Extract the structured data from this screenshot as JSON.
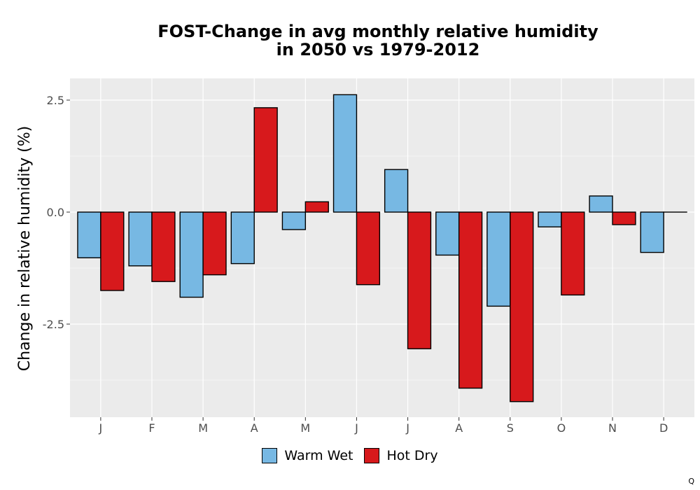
{
  "chart_data": {
    "type": "bar",
    "title_lines": [
      "FOST-Change in avg monthly relative humidity",
      "in 2050 vs 1979-2012"
    ],
    "xlabel": "",
    "ylabel": "Change in relative humidity (%)",
    "categories": [
      "J",
      "F",
      "M",
      "A",
      "M",
      "J",
      "J",
      "A",
      "S",
      "O",
      "N",
      "D"
    ],
    "series": [
      {
        "name": "Warm Wet",
        "color": "#77B8E3",
        "values": [
          -1.02,
          -1.2,
          -1.9,
          -1.15,
          -0.39,
          2.62,
          0.95,
          -0.96,
          -2.1,
          -0.33,
          0.36,
          -0.9
        ]
      },
      {
        "name": "Hot Dry",
        "color": "#D7191C",
        "values": [
          -1.75,
          -1.55,
          -1.4,
          2.33,
          0.23,
          -1.62,
          -3.05,
          -3.93,
          -4.23,
          -1.85,
          -0.28,
          0.0
        ]
      }
    ],
    "yticks": [
      2.5,
      0.0,
      -2.5
    ],
    "ytick_labels": [
      "2.5",
      "0.0",
      "-2.5"
    ],
    "ylim": [
      -4.45,
      2.95
    ],
    "grid": true,
    "legend_position": "bottom",
    "panel_background": "#EBEBEB",
    "grid_color": "#FFFFFF",
    "corner_mark": "Q"
  }
}
